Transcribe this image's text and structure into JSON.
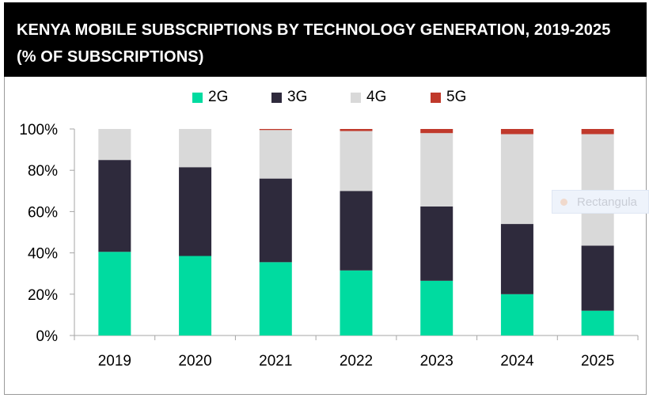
{
  "title": "KENYA MOBILE SUBSCRIPTIONS BY TECHNOLOGY GENERATION, 2019-2025 (% OF SUBSCRIPTIONS)",
  "overlay": {
    "label": "Rectangula",
    "icon": "dot-icon"
  },
  "colors": {
    "2G": "#00dba0",
    "3G": "#2e2a3c",
    "4G": "#d9d9d9",
    "5G": "#c0392b"
  },
  "chart_data": {
    "type": "bar",
    "stacked": true,
    "title": "KENYA MOBILE SUBSCRIPTIONS BY TECHNOLOGY GENERATION, 2019-2025 (% OF SUBSCRIPTIONS)",
    "xlabel": "",
    "ylabel": "",
    "ylim": [
      0,
      100
    ],
    "yticks": [
      "0%",
      "20%",
      "40%",
      "60%",
      "80%",
      "100%"
    ],
    "categories": [
      "2019",
      "2020",
      "2021",
      "2022",
      "2023",
      "2024",
      "2025"
    ],
    "legend_position": "top",
    "series": [
      {
        "name": "2G",
        "values": [
          40.5,
          38.5,
          35.5,
          31.5,
          26.5,
          20.0,
          12.0
        ]
      },
      {
        "name": "3G",
        "values": [
          44.5,
          43.0,
          40.5,
          38.5,
          36.0,
          34.0,
          31.5
        ]
      },
      {
        "name": "4G",
        "values": [
          15.0,
          18.5,
          23.5,
          29.0,
          35.5,
          43.5,
          54.0
        ]
      },
      {
        "name": "5G",
        "values": [
          0.0,
          0.0,
          0.5,
          1.0,
          2.0,
          2.5,
          2.5
        ]
      }
    ]
  }
}
